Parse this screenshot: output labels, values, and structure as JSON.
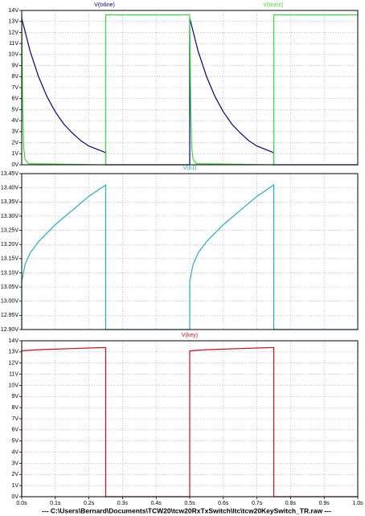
{
  "chart_data": [
    {
      "type": "line",
      "xlim": [
        0,
        1.0
      ],
      "ylim": [
        0,
        14
      ],
      "yticks": [
        {
          "value": 0,
          "label": "0V"
        },
        {
          "value": 1,
          "label": "1V"
        },
        {
          "value": 2,
          "label": "2V"
        },
        {
          "value": 3,
          "label": "3V"
        },
        {
          "value": 4,
          "label": "4V"
        },
        {
          "value": 5,
          "label": "5V"
        },
        {
          "value": 6,
          "label": "6V"
        },
        {
          "value": 7,
          "label": "7V"
        },
        {
          "value": 8,
          "label": "8V"
        },
        {
          "value": 9,
          "label": "9V"
        },
        {
          "value": 10,
          "label": "10V"
        },
        {
          "value": 11,
          "label": "11V"
        },
        {
          "value": 12,
          "label": "12V"
        },
        {
          "value": 13,
          "label": "13V"
        },
        {
          "value": 14,
          "label": "14V"
        }
      ],
      "grid": true,
      "series": [
        {
          "name": "V(txline)",
          "color": "#00008b",
          "x": [
            0,
            0.025,
            0.05,
            0.075,
            0.1,
            0.125,
            0.15,
            0.175,
            0.2,
            0.225,
            0.25,
            0.25,
            0.5,
            0.5,
            0.525,
            0.55,
            0.575,
            0.6,
            0.625,
            0.65,
            0.675,
            0.7,
            0.725,
            0.75,
            0.75,
            1.0
          ],
          "values": [
            13.3,
            10.3,
            8.0,
            6.2,
            4.8,
            3.7,
            2.9,
            2.2,
            1.7,
            1.4,
            1.1,
            0,
            0,
            13.3,
            10.3,
            8.0,
            6.2,
            4.8,
            3.7,
            2.9,
            2.2,
            1.7,
            1.4,
            1.1,
            0,
            0
          ]
        },
        {
          "name": "V(txvcc)",
          "color": "#33dd33",
          "x": [
            0,
            0.003,
            0.006,
            0.01,
            0.02,
            0.25,
            0.25,
            0.5,
            0.503,
            0.506,
            0.51,
            0.52,
            0.75,
            0.75,
            1.0
          ],
          "values": [
            13.6,
            5,
            1.5,
            0.5,
            0.1,
            0,
            13.6,
            13.6,
            5,
            1.5,
            0.5,
            0.1,
            0,
            13.6,
            13.6
          ]
        }
      ]
    },
    {
      "type": "line",
      "xlim": [
        0,
        1.0
      ],
      "ylim": [
        12.9,
        13.45
      ],
      "yticks": [
        {
          "value": 12.9,
          "label": "12.90V"
        },
        {
          "value": 12.95,
          "label": "12.95V"
        },
        {
          "value": 13.0,
          "label": "13.00V"
        },
        {
          "value": 13.05,
          "label": "13.05V"
        },
        {
          "value": 13.1,
          "label": "13.10V"
        },
        {
          "value": 13.15,
          "label": "13.15V"
        },
        {
          "value": 13.2,
          "label": "13.20V"
        },
        {
          "value": 13.25,
          "label": "13.25V"
        },
        {
          "value": 13.3,
          "label": "13.30V"
        },
        {
          "value": 13.35,
          "label": "13.35V"
        },
        {
          "value": 13.4,
          "label": "13.40V"
        },
        {
          "value": 13.45,
          "label": "13.45V"
        }
      ],
      "grid": true,
      "series": [
        {
          "name": "V(b1)",
          "color": "#1fb0c0",
          "x": [
            0,
            0,
            0.01,
            0.025,
            0.05,
            0.1,
            0.15,
            0.2,
            0.25,
            0.25,
            0.5,
            0.5,
            0.51,
            0.525,
            0.55,
            0.6,
            0.65,
            0.7,
            0.75,
            0.75,
            1.0
          ],
          "values": [
            12.9,
            13.07,
            13.13,
            13.17,
            13.21,
            13.27,
            13.32,
            13.37,
            13.41,
            12.9,
            12.9,
            13.07,
            13.13,
            13.17,
            13.21,
            13.27,
            13.32,
            13.37,
            13.41,
            12.9,
            12.9
          ]
        }
      ]
    },
    {
      "type": "line",
      "xlim": [
        0,
        1.0
      ],
      "xticks": [
        {
          "value": 0,
          "label": "0.0s"
        },
        {
          "value": 0.1,
          "label": "0.1s"
        },
        {
          "value": 0.2,
          "label": "0.2s"
        },
        {
          "value": 0.3,
          "label": "0.3s"
        },
        {
          "value": 0.4,
          "label": "0.4s"
        },
        {
          "value": 0.5,
          "label": "0.5s"
        },
        {
          "value": 0.6,
          "label": "0.6s"
        },
        {
          "value": 0.7,
          "label": "0.7s"
        },
        {
          "value": 0.8,
          "label": "0.8s"
        },
        {
          "value": 0.9,
          "label": "0.9s"
        },
        {
          "value": 1.0,
          "label": "1.0s"
        }
      ],
      "ylim": [
        0,
        14
      ],
      "yticks": [
        {
          "value": 0,
          "label": "0V"
        },
        {
          "value": 1,
          "label": "1V"
        },
        {
          "value": 2,
          "label": "2V"
        },
        {
          "value": 3,
          "label": "3V"
        },
        {
          "value": 4,
          "label": "4V"
        },
        {
          "value": 5,
          "label": "5V"
        },
        {
          "value": 6,
          "label": "6V"
        },
        {
          "value": 7,
          "label": "7V"
        },
        {
          "value": 8,
          "label": "8V"
        },
        {
          "value": 9,
          "label": "9V"
        },
        {
          "value": 10,
          "label": "10V"
        },
        {
          "value": 11,
          "label": "11V"
        },
        {
          "value": 12,
          "label": "12V"
        },
        {
          "value": 13,
          "label": "13V"
        },
        {
          "value": 14,
          "label": "14V"
        }
      ],
      "grid": true,
      "series": [
        {
          "name": "V(key)",
          "color": "#d01010",
          "x": [
            0,
            0,
            0.05,
            0.1,
            0.15,
            0.2,
            0.25,
            0.25,
            0.5,
            0.5,
            0.55,
            0.6,
            0.65,
            0.7,
            0.75,
            0.75,
            1.0
          ],
          "values": [
            0,
            13.1,
            13.2,
            13.25,
            13.3,
            13.35,
            13.4,
            0,
            0,
            13.1,
            13.2,
            13.25,
            13.3,
            13.35,
            13.4,
            0,
            0
          ]
        }
      ]
    }
  ],
  "footer": "---  C:\\Users\\Bernard\\Documents\\TCW20\\tcw20RxTxSwitch\\ltc\\tcw20KeySwitch_TR.raw  ---"
}
